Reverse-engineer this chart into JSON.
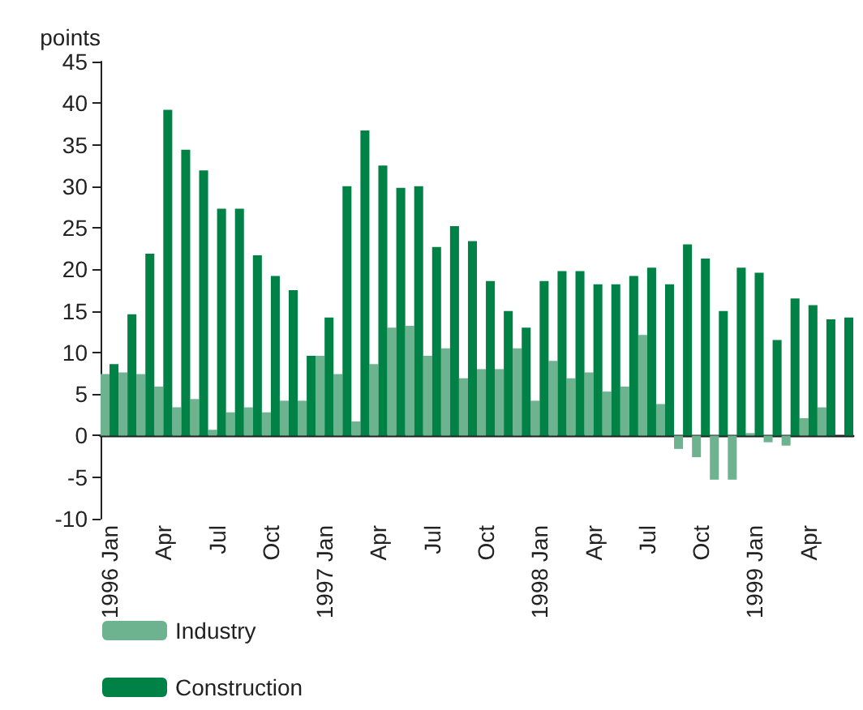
{
  "chart_data": {
    "type": "bar",
    "ylabel": "points",
    "categories": [
      "1996 Jan",
      null,
      null,
      "Apr",
      null,
      null,
      "Jul",
      null,
      null,
      "Oct",
      null,
      null,
      "1997 Jan",
      null,
      null,
      "Apr",
      null,
      null,
      "Jul",
      null,
      null,
      "Oct",
      null,
      null,
      "1998 Jan",
      null,
      null,
      "Apr",
      null,
      null,
      "Jul",
      null,
      null,
      "Oct",
      null,
      null,
      "1999 Jan",
      null,
      null,
      "Apr",
      null,
      null
    ],
    "series": [
      {
        "name": "Industry",
        "color": "#6db38f",
        "values": [
          7.4,
          7.6,
          7.4,
          5.9,
          3.4,
          4.4,
          0.7,
          2.8,
          3.4,
          2.8,
          4.2,
          4.2,
          9.6,
          7.4,
          1.7,
          8.6,
          13.0,
          13.2,
          9.6,
          10.5,
          6.9,
          8.0,
          8.0,
          10.5,
          4.2,
          9.0,
          6.9,
          7.6,
          5.3,
          5.9,
          12.1,
          3.8,
          -1.6,
          -2.6,
          -5.3,
          -5.3,
          0.3,
          -0.8,
          -1.2,
          2.1,
          3.4,
          null
        ]
      },
      {
        "name": "Construction",
        "color": "#008145",
        "values": [
          8.6,
          14.6,
          21.9,
          39.2,
          34.4,
          31.9,
          27.3,
          27.3,
          21.7,
          19.2,
          17.5,
          9.6,
          14.2,
          30.0,
          36.7,
          32.5,
          29.8,
          30.0,
          22.7,
          25.2,
          23.4,
          18.6,
          15.0,
          13.0,
          18.6,
          19.8,
          19.8,
          18.2,
          18.2,
          19.2,
          20.2,
          18.2,
          23.0,
          21.3,
          15.0,
          20.2,
          19.6,
          11.5,
          16.5,
          15.7,
          14.0,
          14.2
        ]
      }
    ],
    "ylim": [
      -10,
      45
    ],
    "yticks": [
      -10,
      -5,
      0,
      5,
      10,
      15,
      20,
      25,
      30,
      35,
      40,
      45
    ],
    "legend": "bottom left"
  }
}
